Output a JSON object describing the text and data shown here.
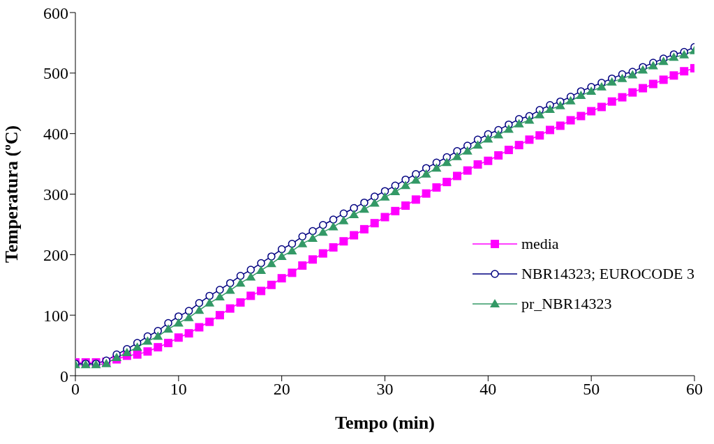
{
  "chart_data": {
    "type": "line",
    "xlabel": "Tempo (min)",
    "ylabel": "Temperatura (ºC)",
    "x": [
      0,
      1,
      2,
      3,
      4,
      5,
      6,
      7,
      8,
      9,
      10,
      11,
      12,
      13,
      14,
      15,
      16,
      17,
      18,
      19,
      20,
      21,
      22,
      23,
      24,
      25,
      26,
      27,
      28,
      29,
      30,
      31,
      32,
      33,
      34,
      35,
      36,
      37,
      38,
      39,
      40,
      41,
      42,
      43,
      44,
      45,
      46,
      47,
      48,
      49,
      50,
      51,
      52,
      53,
      54,
      55,
      56,
      57,
      58,
      59,
      60
    ],
    "series": [
      {
        "name": "media",
        "color": "#ff00ff",
        "marker": "square",
        "values": [
          22,
          22,
          22,
          23,
          27,
          33,
          35,
          40,
          47,
          54,
          63,
          70,
          80,
          89,
          100,
          111,
          121,
          132,
          140,
          150,
          161,
          170,
          182,
          192,
          202,
          212,
          222,
          232,
          242,
          252,
          262,
          272,
          281,
          291,
          301,
          311,
          320,
          330,
          339,
          349,
          355,
          364,
          373,
          381,
          390,
          397,
          406,
          413,
          422,
          429,
          437,
          444,
          453,
          460,
          468,
          475,
          482,
          489,
          496,
          503,
          508
        ]
      },
      {
        "name": "NBR14323; EUROCODE 3",
        "color": "#000080",
        "marker": "circle",
        "values": [
          20,
          20,
          20,
          25,
          35,
          44,
          54,
          65,
          74,
          87,
          98,
          107,
          120,
          132,
          142,
          153,
          165,
          175,
          186,
          197,
          209,
          218,
          230,
          239,
          249,
          258,
          268,
          277,
          286,
          296,
          305,
          314,
          324,
          333,
          343,
          352,
          361,
          371,
          380,
          390,
          399,
          406,
          415,
          424,
          429,
          439,
          447,
          453,
          461,
          470,
          477,
          484,
          491,
          498,
          502,
          510,
          517,
          524,
          531,
          535,
          543
        ]
      },
      {
        "name": "pr_NBR14323",
        "color": "#339966",
        "marker": "triangle",
        "values": [
          18,
          18,
          18,
          20,
          30,
          38,
          47,
          57,
          65,
          77,
          87,
          96,
          108,
          120,
          130,
          141,
          153,
          163,
          174,
          185,
          197,
          206,
          218,
          227,
          237,
          246,
          256,
          266,
          275,
          285,
          295,
          304,
          314,
          323,
          333,
          343,
          352,
          362,
          371,
          381,
          391,
          398,
          407,
          416,
          422,
          431,
          440,
          446,
          454,
          463,
          470,
          477,
          485,
          491,
          497,
          505,
          512,
          519,
          526,
          530,
          537
        ]
      }
    ],
    "xlim": [
      0,
      60
    ],
    "xticks": [
      0,
      10,
      20,
      30,
      40,
      50,
      60
    ],
    "ylim": [
      0,
      600
    ],
    "yticks": [
      0,
      100,
      200,
      300,
      400,
      500,
      600
    ],
    "grid": false,
    "legend": "right"
  }
}
